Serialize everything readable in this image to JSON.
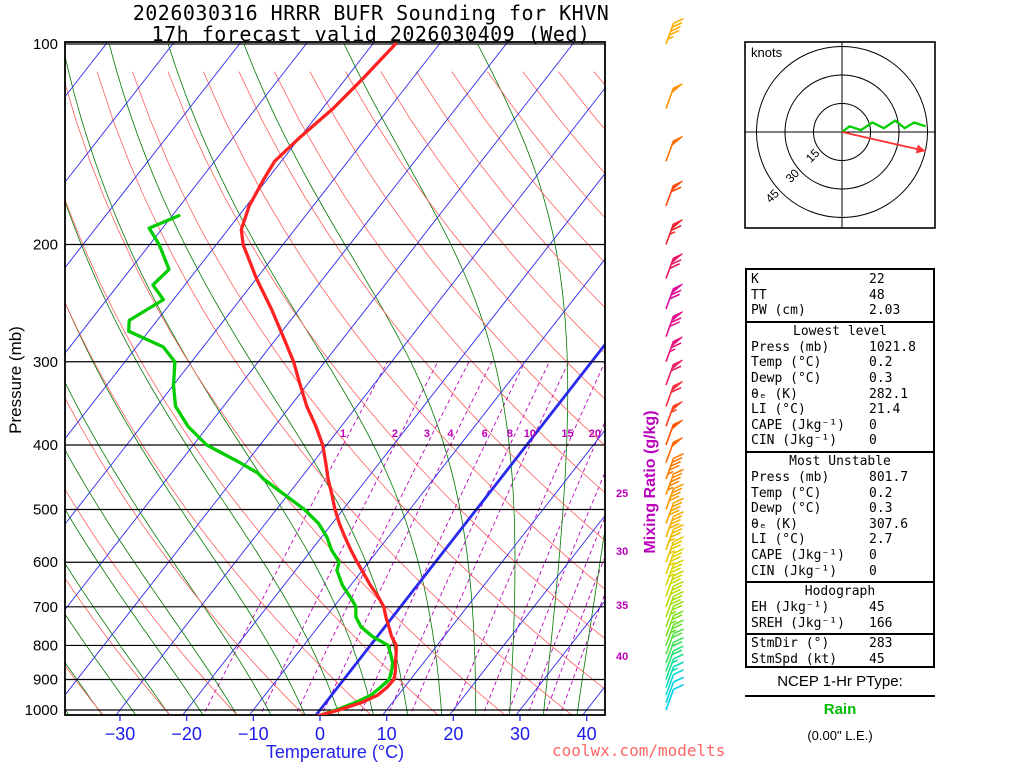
{
  "title": {
    "line1": "2026030316 HRRR BUFR Sounding for KHVN",
    "line2": "17h forecast valid 2026030409 (Wed)"
  },
  "axes": {
    "pressure_label": "Pressure (mb)",
    "temp_label": "Temperature (°C)",
    "mixing_label": "Mixing Ratio (g/kg)"
  },
  "chart_data": {
    "type": "skewt-log-p sounding",
    "pressure_ticks": [
      100,
      200,
      300,
      400,
      500,
      600,
      700,
      800,
      900,
      1000
    ],
    "temp_ticks": [
      -30,
      -20,
      -10,
      0,
      10,
      20,
      30,
      40
    ],
    "pressure_range_mb": [
      100,
      1050
    ],
    "temp_axis_range_c": [
      -40,
      45
    ],
    "mixing_ratio_values": [
      1,
      2,
      3,
      4,
      6,
      8,
      10,
      15,
      20,
      25,
      30,
      35,
      40
    ],
    "colors": {
      "temperature": "#ff2222",
      "dewpoint": "#00cc00",
      "isotherm": "#2a2aee",
      "dry_adiabat": "#ff6060",
      "moist_adiabat": "#007700",
      "mixing_ratio": "#bb00bb",
      "temp_tick": "#1a1aee"
    },
    "temperature_profile": [
      [
        1022,
        0.2
      ],
      [
        1000,
        2.8
      ],
      [
        975,
        5.3
      ],
      [
        950,
        6.9
      ],
      [
        925,
        7.4
      ],
      [
        900,
        7.5
      ],
      [
        875,
        6.8
      ],
      [
        850,
        5.8
      ],
      [
        825,
        4.9
      ],
      [
        800,
        3.9
      ],
      [
        775,
        2.1
      ],
      [
        750,
        0.6
      ],
      [
        725,
        -1.0
      ],
      [
        700,
        -2.5
      ],
      [
        675,
        -4.6
      ],
      [
        650,
        -7.0
      ],
      [
        625,
        -9.3
      ],
      [
        600,
        -11.7
      ],
      [
        575,
        -14.1
      ],
      [
        550,
        -16.5
      ],
      [
        525,
        -18.9
      ],
      [
        500,
        -21.2
      ],
      [
        475,
        -23.4
      ],
      [
        450,
        -25.8
      ],
      [
        425,
        -28.1
      ],
      [
        400,
        -30.6
      ],
      [
        375,
        -33.8
      ],
      [
        350,
        -37.5
      ],
      [
        325,
        -41.0
      ],
      [
        300,
        -44.7
      ],
      [
        275,
        -49.2
      ],
      [
        250,
        -54.2
      ],
      [
        225,
        -60.0
      ],
      [
        200,
        -66.0
      ],
      [
        190,
        -68.0
      ],
      [
        175,
        -69.6
      ],
      [
        160,
        -70.5
      ],
      [
        150,
        -71.0
      ],
      [
        138,
        -70.0
      ],
      [
        125,
        -68.4
      ],
      [
        112,
        -67.4
      ],
      [
        100,
        -66.6
      ]
    ],
    "dewpoint_profile": [
      [
        1022,
        0.3
      ],
      [
        1000,
        2.4
      ],
      [
        975,
        4.4
      ],
      [
        950,
        5.9
      ],
      [
        925,
        6.4
      ],
      [
        900,
        6.8
      ],
      [
        875,
        6.2
      ],
      [
        850,
        5.4
      ],
      [
        825,
        4.1
      ],
      [
        800,
        2.7
      ],
      [
        775,
        -0.8
      ],
      [
        750,
        -3.6
      ],
      [
        725,
        -5.5
      ],
      [
        700,
        -6.7
      ],
      [
        683,
        -8.1
      ],
      [
        650,
        -11.2
      ],
      [
        617,
        -13.8
      ],
      [
        600,
        -14.4
      ],
      [
        575,
        -17.0
      ],
      [
        550,
        -19.2
      ],
      [
        525,
        -22.0
      ],
      [
        500,
        -25.8
      ],
      [
        475,
        -30.5
      ],
      [
        450,
        -35.5
      ],
      [
        441,
        -37.0
      ],
      [
        425,
        -41.0
      ],
      [
        400,
        -48.0
      ],
      [
        375,
        -53.0
      ],
      [
        350,
        -57.2
      ],
      [
        325,
        -60.0
      ],
      [
        300,
        -62.5
      ],
      [
        285,
        -66.0
      ],
      [
        270,
        -73.0
      ],
      [
        260,
        -74.2
      ],
      [
        242,
        -71.5
      ],
      [
        230,
        -74.8
      ],
      [
        218,
        -74.2
      ],
      [
        200,
        -78.6
      ],
      [
        189,
        -82.0
      ],
      [
        181,
        -79.0
      ]
    ],
    "wind_barbs": [
      [
        1000,
        8,
        "#00ccee"
      ],
      [
        975,
        10,
        "#00d2e2"
      ],
      [
        950,
        12,
        "#00d8d0"
      ],
      [
        925,
        14,
        "#06ddb2"
      ],
      [
        900,
        16,
        "#14e094"
      ],
      [
        875,
        18,
        "#28e276"
      ],
      [
        850,
        20,
        "#3ce25c"
      ],
      [
        825,
        22,
        "#52e146"
      ],
      [
        800,
        24,
        "#68e032"
      ],
      [
        775,
        25,
        "#7ee022"
      ],
      [
        750,
        27,
        "#94de14"
      ],
      [
        725,
        28,
        "#a8dc0a"
      ],
      [
        700,
        30,
        "#badb02"
      ],
      [
        675,
        31,
        "#cada00"
      ],
      [
        650,
        33,
        "#d8d800"
      ],
      [
        625,
        34,
        "#e2d200"
      ],
      [
        600,
        35,
        "#eac800"
      ],
      [
        575,
        37,
        "#f0bc00"
      ],
      [
        550,
        38,
        "#f4b000"
      ],
      [
        525,
        40,
        "#f7a400"
      ],
      [
        500,
        42,
        "#fa9600"
      ],
      [
        475,
        44,
        "#fc8800"
      ],
      [
        450,
        46,
        "#fe7800"
      ],
      [
        425,
        48,
        "#ff6600"
      ],
      [
        400,
        52,
        "#ff5200"
      ],
      [
        375,
        55,
        "#fb3e1e"
      ],
      [
        350,
        58,
        "#f52e44"
      ],
      [
        325,
        62,
        "#ee2064"
      ],
      [
        300,
        66,
        "#e8167e"
      ],
      [
        275,
        70,
        "#e30e90"
      ],
      [
        250,
        72,
        "#e00a9a"
      ],
      [
        225,
        68,
        "#e71664"
      ],
      [
        200,
        64,
        "#f02430"
      ],
      [
        175,
        58,
        "#f84a10"
      ],
      [
        150,
        52,
        "#fc7000"
      ],
      [
        125,
        48,
        "#fe9200"
      ],
      [
        100,
        44,
        "#ffac00"
      ]
    ]
  },
  "hodograph": {
    "unit_label": "knots",
    "ring_labels": [
      15,
      30,
      45
    ],
    "trace_color": "#00cc00",
    "storm_color": "#ff3333",
    "trace_kt": [
      [
        0,
        0
      ],
      [
        4,
        3
      ],
      [
        10,
        1
      ],
      [
        16,
        5
      ],
      [
        22,
        2
      ],
      [
        28,
        6
      ],
      [
        33,
        2
      ],
      [
        38,
        5
      ],
      [
        44,
        3
      ]
    ],
    "storm_vector_kt": [
      44,
      -10
    ]
  },
  "table": {
    "sections": [
      {
        "header": null,
        "rows": [
          [
            "K",
            "22"
          ],
          [
            "TT",
            "48"
          ],
          [
            "PW (cm)",
            "2.03"
          ]
        ]
      },
      {
        "header": "Lowest level",
        "rows": [
          [
            "Press (mb)",
            "1021.8"
          ],
          [
            "Temp (°C)",
            "0.2"
          ],
          [
            "Dewp (°C)",
            "0.3"
          ],
          [
            "θₑ (K)",
            "282.1"
          ],
          [
            "LI (°C)",
            "21.4"
          ],
          [
            "CAPE (Jkg⁻¹)",
            "0"
          ],
          [
            "CIN (Jkg⁻¹)",
            "0"
          ]
        ]
      },
      {
        "header": "Most Unstable",
        "rows": [
          [
            "Press (mb)",
            "801.7"
          ],
          [
            "Temp (°C)",
            "0.2"
          ],
          [
            "Dewp (°C)",
            "0.3"
          ],
          [
            "θₑ (K)",
            "307.6"
          ],
          [
            "LI (°C)",
            "2.7"
          ],
          [
            "CAPE (Jkg⁻¹)",
            "0"
          ],
          [
            "CIN (Jkg⁻¹)",
            "0"
          ]
        ]
      },
      {
        "header": "Hodograph",
        "rows": [
          [
            "EH (Jkg⁻¹)",
            "45"
          ],
          [
            "SREH (Jkg⁻¹)",
            "166"
          ]
        ]
      },
      {
        "header": null,
        "rows": [
          [
            "StmDir (°)",
            "283"
          ],
          [
            "StmSpd (kt)",
            "45"
          ]
        ]
      }
    ]
  },
  "ptype": {
    "label": "NCEP 1-Hr PType:",
    "value": "Rain",
    "value_color": "#00bb00",
    "liquid": "(0.00\" L.E.)"
  },
  "watermark": "coolwx.com/modelts"
}
